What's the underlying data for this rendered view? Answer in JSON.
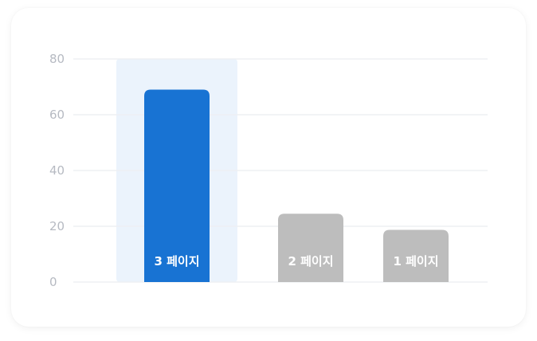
{
  "chart_data": {
    "type": "bar",
    "categories": [
      "3 페이지",
      "2 페이지",
      "1 페이지"
    ],
    "values": [
      69,
      24.5,
      18.7
    ],
    "ylim": [
      0,
      80
    ],
    "yticks": [
      0,
      20,
      40,
      60,
      80
    ],
    "grid": true,
    "highlighted_category": "3 페이지",
    "colors": {
      "highlight_bar": "#1873d3",
      "highlight_band": "#ebf3fc",
      "default_bar": "#bdbdbd",
      "grid": "#eef0f3",
      "tick_text": "#b6bac2"
    }
  }
}
